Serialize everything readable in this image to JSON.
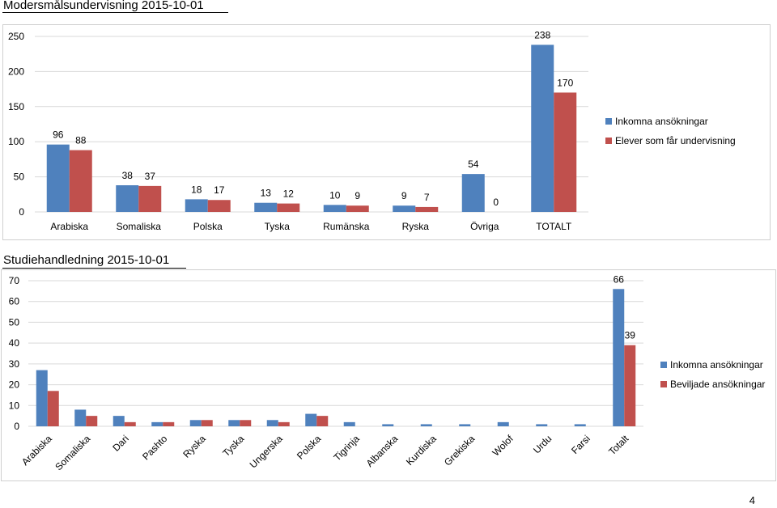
{
  "page": {
    "heading1": "Modersmålsundervisning 2015-10-01",
    "heading2": "Studiehandledning 2015-10-01",
    "page_number": "4"
  },
  "colors": {
    "series1": "#4f81bd",
    "series2": "#c0504d",
    "grid": "#d9d9d9"
  },
  "chart_data": [
    {
      "type": "bar",
      "title": "Modersmålsundervisning 2015-10-01",
      "categories": [
        "Arabiska",
        "Somaliska",
        "Polska",
        "Tyska",
        "Rumänska",
        "Ryska",
        "Övriga",
        "TOTALT"
      ],
      "series": [
        {
          "name": "Inkomna ansökningar",
          "values": [
            96,
            38,
            18,
            13,
            10,
            9,
            54,
            238
          ]
        },
        {
          "name": "Elever som får undervisning",
          "values": [
            88,
            37,
            17,
            12,
            9,
            7,
            0,
            170
          ]
        }
      ],
      "yticks": [
        0,
        50,
        100,
        150,
        200,
        250
      ],
      "ylim": [
        0,
        250
      ],
      "grid": true,
      "legend": "right",
      "data_labels": true
    },
    {
      "type": "bar",
      "title": "Studiehandledning 2015-10-01",
      "categories": [
        "Arabiska",
        "Somaliska",
        "Dari",
        "Pashto",
        "Ryska",
        "Tyska",
        "Ungerska",
        "Polska",
        "Tigrinja",
        "Albanska",
        "Kurdiska",
        "Grekiska",
        "Wolof",
        "Urdu",
        "Farsi",
        "Totalt"
      ],
      "series": [
        {
          "name": "Inkomna ansökningar",
          "values": [
            27,
            8,
            5,
            2,
            3,
            3,
            3,
            6,
            2,
            1,
            1,
            1,
            2,
            1,
            1,
            66
          ]
        },
        {
          "name": "Beviljade ansökningar",
          "values": [
            17,
            5,
            2,
            2,
            3,
            3,
            2,
            5,
            0,
            0,
            0,
            0,
            0,
            0,
            0,
            39
          ]
        }
      ],
      "data_labels_shown": {
        "category": "Totalt",
        "values": [
          66,
          39
        ]
      },
      "yticks": [
        0,
        10,
        20,
        30,
        40,
        50,
        60,
        70
      ],
      "ylim": [
        0,
        70
      ],
      "grid": true,
      "legend": "right",
      "rotated_category_labels": true
    }
  ]
}
